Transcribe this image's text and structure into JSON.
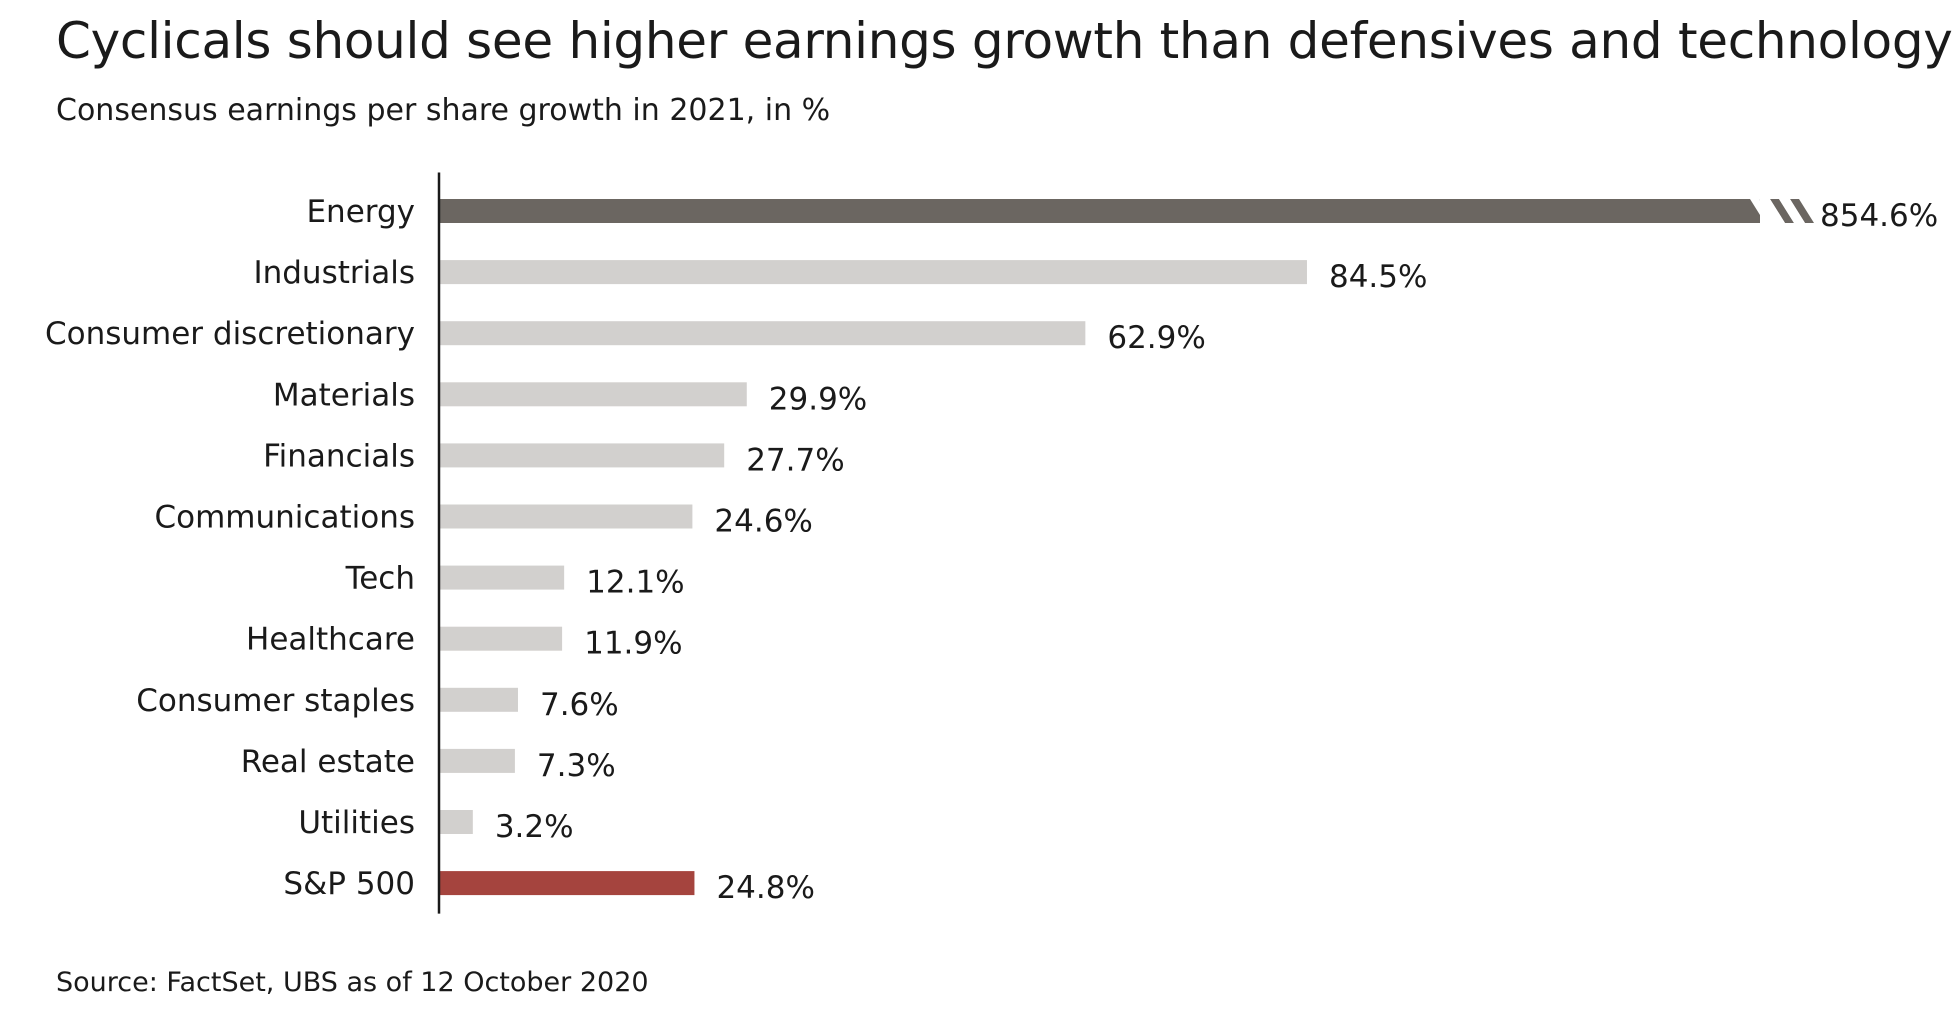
{
  "chart_data": {
    "type": "bar",
    "orientation": "horizontal",
    "title": "Cyclicals should see higher earnings growth than defensives and technology",
    "subtitle": "Consensus earnings per share growth in 2021, in %",
    "source": "Source: FactSet, UBS as of 12 October 2020",
    "categories": [
      "Energy",
      "Industrials",
      "Consumer discretionary",
      "Materials",
      "Financials",
      "Communications",
      "Tech",
      "Healthcare",
      "Consumer staples",
      "Real estate",
      "Utilities",
      "S&P 500"
    ],
    "values": [
      854.6,
      84.5,
      62.9,
      29.9,
      27.7,
      24.6,
      12.1,
      11.9,
      7.6,
      7.3,
      3.2,
      24.8
    ],
    "value_labels": [
      "854.6%",
      "84.5%",
      "62.9%",
      "29.9%",
      "27.7%",
      "24.6%",
      "12.1%",
      "11.9%",
      "7.6%",
      "7.3%",
      "3.2%",
      "24.8%"
    ],
    "broken_axis_categories": [
      "Energy"
    ],
    "colors": {
      "Energy": "#6b6661",
      "default": "#d2d0ce",
      "S&P 500": "#a5443e"
    },
    "grid": false,
    "legend": "none"
  }
}
